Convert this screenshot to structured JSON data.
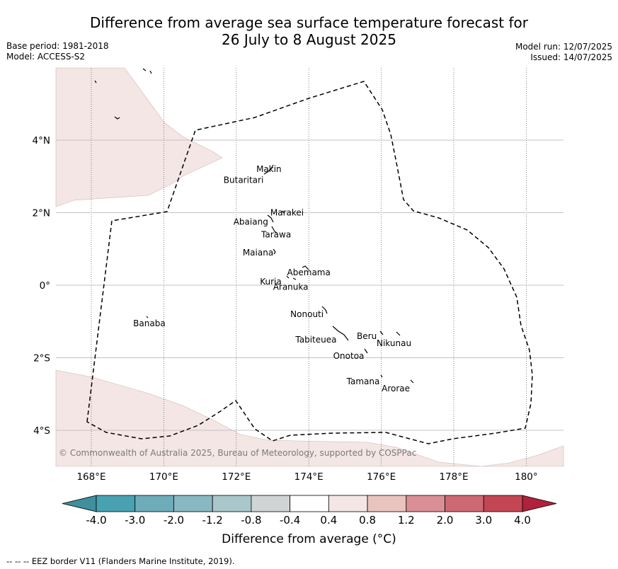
{
  "title_line1": "Difference from average sea surface temperature forecast for",
  "title_line2": "26 July to 8 August 2025",
  "base_period": "Base period: 1981-2018",
  "model": "Model: ACCESS-S2",
  "model_run": "Model run: 12/07/2025",
  "issued": "Issued: 14/07/2025",
  "copyright": "© Commonwealth of Australia 2025, Bureau of Meteorology, supported by COSPPac",
  "colorbar_label": "Difference from average (°C)",
  "footnote": "--  --  -- EEZ border V11 (Flanders Marine Institute, 2019).",
  "x_ticks": [
    {
      "lon": 168,
      "label": "168°E"
    },
    {
      "lon": 170,
      "label": "170°E"
    },
    {
      "lon": 172,
      "label": "172°E"
    },
    {
      "lon": 174,
      "label": "174°E"
    },
    {
      "lon": 176,
      "label": "176°E"
    },
    {
      "lon": 178,
      "label": "178°E"
    },
    {
      "lon": 180,
      "label": "180°"
    }
  ],
  "y_ticks": [
    {
      "lat": 4,
      "label": "4°N"
    },
    {
      "lat": 2,
      "label": "2°N"
    },
    {
      "lat": 0,
      "label": "0°"
    },
    {
      "lat": -2,
      "label": "2°S"
    },
    {
      "lat": -4,
      "label": "4°S"
    }
  ],
  "islands": [
    {
      "name": "Makin",
      "lon": 172.9,
      "lat": 3.2
    },
    {
      "name": "Butaritari",
      "lon": 172.2,
      "lat": 2.9
    },
    {
      "name": "Marakei",
      "lon": 173.4,
      "lat": 2.0
    },
    {
      "name": "Abaiang",
      "lon": 172.4,
      "lat": 1.75
    },
    {
      "name": "Tarawa",
      "lon": 173.1,
      "lat": 1.4
    },
    {
      "name": "Maiana",
      "lon": 172.6,
      "lat": 0.9
    },
    {
      "name": "Abemama",
      "lon": 174.0,
      "lat": 0.35
    },
    {
      "name": "Kuria",
      "lon": 172.95,
      "lat": 0.1
    },
    {
      "name": "Aranuka",
      "lon": 173.5,
      "lat": -0.05
    },
    {
      "name": "Nonouti",
      "lon": 173.95,
      "lat": -0.8
    },
    {
      "name": "Banaba",
      "lon": 169.6,
      "lat": -1.05
    },
    {
      "name": "Beru",
      "lon": 175.6,
      "lat": -1.4
    },
    {
      "name": "Nikunau",
      "lon": 176.35,
      "lat": -1.6
    },
    {
      "name": "Tabiteuea",
      "lon": 174.2,
      "lat": -1.5
    },
    {
      "name": "Onotoa",
      "lon": 175.1,
      "lat": -1.95
    },
    {
      "name": "Tamana",
      "lon": 175.5,
      "lat": -2.65
    },
    {
      "name": "Arorae",
      "lon": 176.4,
      "lat": -2.85
    }
  ],
  "colorbar": {
    "ticks": [
      "-4.0",
      "-3.0",
      "-2.0",
      "-1.2",
      "-0.8",
      "-0.4",
      "0.4",
      "0.8",
      "1.2",
      "2.0",
      "3.0",
      "4.0"
    ],
    "colors": [
      "#3f8f9c",
      "#49a2b1",
      "#6eacb9",
      "#8ab8c2",
      "#a9c7cb",
      "#d0d4d4",
      "#ffffff",
      "#f4e6e4",
      "#e9c4bf",
      "#d98f95",
      "#cd6972",
      "#c44655",
      "#b0213c"
    ],
    "under_color": "#3f8f9c",
    "over_color": "#b0213c"
  },
  "anomaly_fill_color": "#f4e6e4"
}
